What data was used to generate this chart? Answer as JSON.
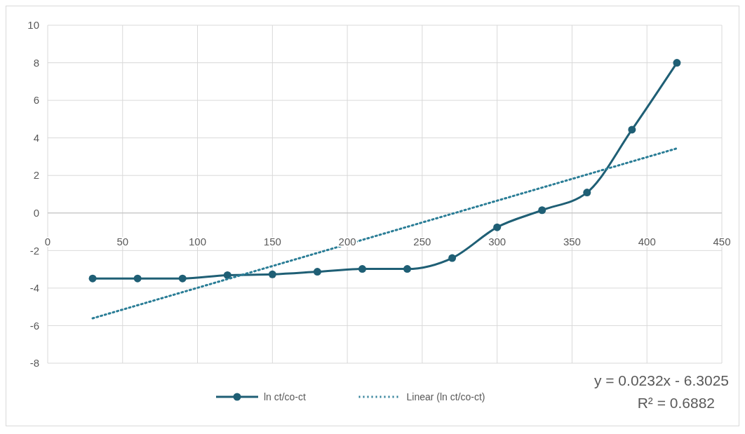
{
  "chart_data": {
    "type": "line",
    "xlim": [
      0,
      450
    ],
    "xticks": [
      0,
      50,
      100,
      150,
      200,
      250,
      300,
      350,
      400,
      450
    ],
    "ylim": [
      -8,
      10
    ],
    "yticks": [
      -8,
      -6,
      -4,
      -2,
      0,
      2,
      4,
      6,
      8,
      10
    ],
    "grid": true,
    "legend": "bottom",
    "series": [
      {
        "name": "ln ct/co-ct",
        "color": "#1f5f75",
        "marker": "circle",
        "line_style": "solid",
        "x": [
          30,
          60,
          90,
          120,
          150,
          180,
          210,
          240,
          270,
          300,
          330,
          360,
          390,
          420
        ],
        "values": [
          -3.49,
          -3.49,
          -3.49,
          -3.31,
          -3.27,
          -3.13,
          -2.98,
          -2.98,
          -2.4,
          -0.76,
          0.15,
          1.09,
          4.44,
          8.0
        ]
      },
      {
        "name": "Linear (ln ct/co-ct)",
        "color": "#2a7d96",
        "marker": "none",
        "line_style": "dotted",
        "x": [
          30,
          420
        ],
        "values": [
          -5.61,
          3.44
        ]
      }
    ],
    "annotations": [
      "y = 0.0232x - 6.3025",
      "R² = 0.6882"
    ]
  }
}
